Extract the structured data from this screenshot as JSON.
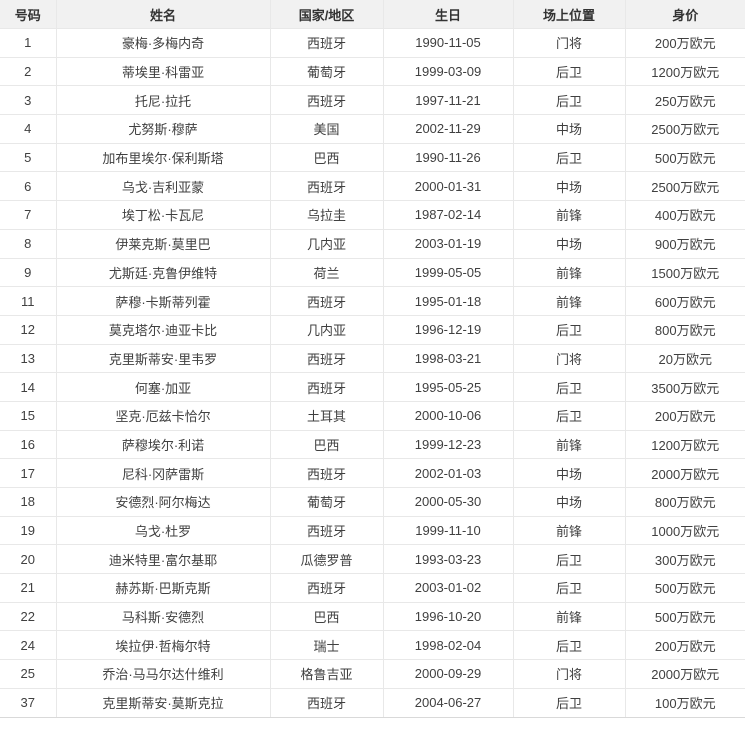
{
  "colors": {
    "header_bg": "#f1f1f1",
    "header_text": "#333333",
    "cell_text": "#404040",
    "grid_line": "#e8e8e8",
    "bottom_line": "#d9d9d9",
    "row_bg": "#ffffff"
  },
  "chart_data": {
    "type": "table",
    "columns": [
      {
        "key": "number",
        "label": "号码"
      },
      {
        "key": "name",
        "label": "姓名"
      },
      {
        "key": "country",
        "label": "国家/地区"
      },
      {
        "key": "birthday",
        "label": "生日"
      },
      {
        "key": "position",
        "label": "场上位置"
      },
      {
        "key": "value",
        "label": "身价"
      }
    ],
    "rows": [
      [
        "1",
        "豪梅·多梅内奇",
        "西班牙",
        "1990-11-05",
        "门将",
        "200万欧元"
      ],
      [
        "2",
        "蒂埃里·科雷亚",
        "葡萄牙",
        "1999-03-09",
        "后卫",
        "1200万欧元"
      ],
      [
        "3",
        "托尼·拉托",
        "西班牙",
        "1997-11-21",
        "后卫",
        "250万欧元"
      ],
      [
        "4",
        "尤努斯·穆萨",
        "美国",
        "2002-11-29",
        "中场",
        "2500万欧元"
      ],
      [
        "5",
        "加布里埃尔·保利斯塔",
        "巴西",
        "1990-11-26",
        "后卫",
        "500万欧元"
      ],
      [
        "6",
        "乌戈·吉利亚蒙",
        "西班牙",
        "2000-01-31",
        "中场",
        "2500万欧元"
      ],
      [
        "7",
        "埃丁松·卡瓦尼",
        "乌拉圭",
        "1987-02-14",
        "前锋",
        "400万欧元"
      ],
      [
        "8",
        "伊莱克斯·莫里巴",
        "几内亚",
        "2003-01-19",
        "中场",
        "900万欧元"
      ],
      [
        "9",
        "尤斯廷·克鲁伊维特",
        "荷兰",
        "1999-05-05",
        "前锋",
        "1500万欧元"
      ],
      [
        "11",
        "萨穆·卡斯蒂列霍",
        "西班牙",
        "1995-01-18",
        "前锋",
        "600万欧元"
      ],
      [
        "12",
        "莫克塔尔·迪亚卡比",
        "几内亚",
        "1996-12-19",
        "后卫",
        "800万欧元"
      ],
      [
        "13",
        "克里斯蒂安·里韦罗",
        "西班牙",
        "1998-03-21",
        "门将",
        "20万欧元"
      ],
      [
        "14",
        "何塞·加亚",
        "西班牙",
        "1995-05-25",
        "后卫",
        "3500万欧元"
      ],
      [
        "15",
        "坚克·厄兹卡恰尔",
        "土耳其",
        "2000-10-06",
        "后卫",
        "200万欧元"
      ],
      [
        "16",
        "萨穆埃尔·利诺",
        "巴西",
        "1999-12-23",
        "前锋",
        "1200万欧元"
      ],
      [
        "17",
        "尼科·冈萨雷斯",
        "西班牙",
        "2002-01-03",
        "中场",
        "2000万欧元"
      ],
      [
        "18",
        "安德烈·阿尔梅达",
        "葡萄牙",
        "2000-05-30",
        "中场",
        "800万欧元"
      ],
      [
        "19",
        "乌戈·杜罗",
        "西班牙",
        "1999-11-10",
        "前锋",
        "1000万欧元"
      ],
      [
        "20",
        "迪米特里·富尔基耶",
        "瓜德罗普",
        "1993-03-23",
        "后卫",
        "300万欧元"
      ],
      [
        "21",
        "赫苏斯·巴斯克斯",
        "西班牙",
        "2003-01-02",
        "后卫",
        "500万欧元"
      ],
      [
        "22",
        "马科斯·安德烈",
        "巴西",
        "1996-10-20",
        "前锋",
        "500万欧元"
      ],
      [
        "24",
        "埃拉伊·哲梅尔特",
        "瑞士",
        "1998-02-04",
        "后卫",
        "200万欧元"
      ],
      [
        "25",
        "乔治·马马尔达什维利",
        "格鲁吉亚",
        "2000-09-29",
        "门将",
        "2000万欧元"
      ],
      [
        "37",
        "克里斯蒂安·莫斯克拉",
        "西班牙",
        "2004-06-27",
        "后卫",
        "100万欧元"
      ]
    ]
  }
}
